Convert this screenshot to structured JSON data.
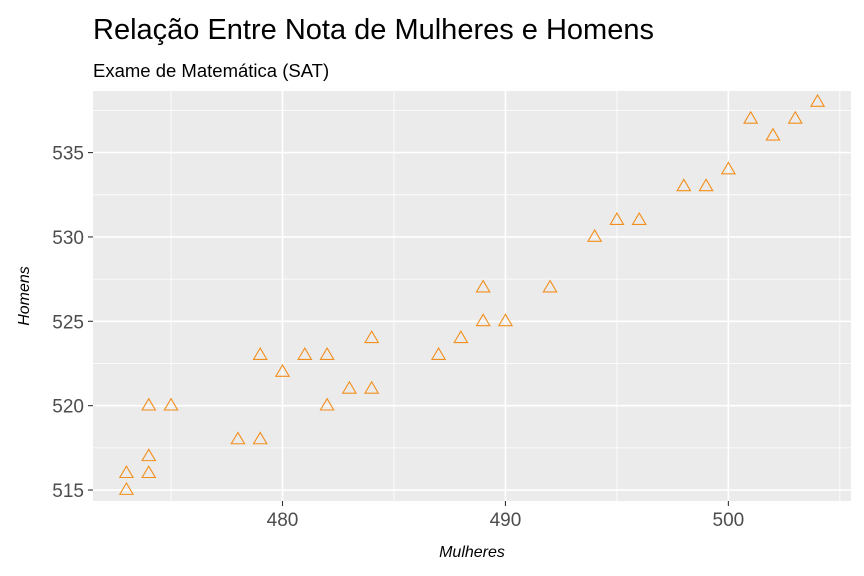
{
  "chart_data": {
    "type": "scatter",
    "title": "Relação Entre Nota de Mulheres e Homens",
    "subtitle": "Exame de Matemática (SAT)",
    "xlabel": "Mulheres",
    "ylabel": "Homens",
    "xlim": [
      471.5,
      505.5
    ],
    "ylim": [
      514.35,
      538.65
    ],
    "x_ticks": [
      480,
      490,
      500
    ],
    "y_ticks": [
      515,
      520,
      525,
      530,
      535
    ],
    "grid": true,
    "marker": "open-triangle",
    "colors": {
      "point": "#f28e1c",
      "panel": "#ebebeb",
      "grid": "#ffffff"
    },
    "points": [
      {
        "x": 473,
        "y": 515
      },
      {
        "x": 473,
        "y": 516
      },
      {
        "x": 474,
        "y": 516
      },
      {
        "x": 474,
        "y": 517
      },
      {
        "x": 474,
        "y": 520
      },
      {
        "x": 475,
        "y": 520
      },
      {
        "x": 478,
        "y": 518
      },
      {
        "x": 479,
        "y": 518
      },
      {
        "x": 479,
        "y": 523
      },
      {
        "x": 480,
        "y": 522
      },
      {
        "x": 481,
        "y": 523
      },
      {
        "x": 482,
        "y": 523
      },
      {
        "x": 482,
        "y": 520
      },
      {
        "x": 483,
        "y": 521
      },
      {
        "x": 484,
        "y": 521
      },
      {
        "x": 484,
        "y": 524
      },
      {
        "x": 487,
        "y": 523
      },
      {
        "x": 488,
        "y": 524
      },
      {
        "x": 489,
        "y": 525
      },
      {
        "x": 489,
        "y": 527
      },
      {
        "x": 490,
        "y": 525
      },
      {
        "x": 492,
        "y": 527
      },
      {
        "x": 494,
        "y": 530
      },
      {
        "x": 495,
        "y": 531
      },
      {
        "x": 496,
        "y": 531
      },
      {
        "x": 498,
        "y": 533
      },
      {
        "x": 499,
        "y": 533
      },
      {
        "x": 500,
        "y": 534
      },
      {
        "x": 501,
        "y": 537
      },
      {
        "x": 502,
        "y": 536
      },
      {
        "x": 503,
        "y": 537
      },
      {
        "x": 504,
        "y": 538
      }
    ]
  }
}
